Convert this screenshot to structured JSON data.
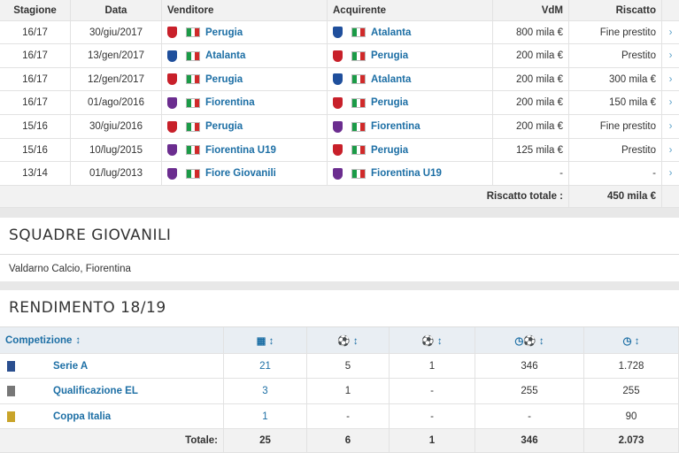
{
  "transfers": {
    "headers": [
      "Stagione",
      "Data",
      "Venditore",
      "Acquirente",
      "VdM",
      "Riscatto"
    ],
    "rows": [
      {
        "season": "16/17",
        "date": "30/giu/2017",
        "seller": "Perugia",
        "seller_crest": "#c8202a",
        "buyer": "Atalanta",
        "buyer_crest": "#1f4f9c",
        "value": "800 mila €",
        "buyout": "Fine prestito"
      },
      {
        "season": "16/17",
        "date": "13/gen/2017",
        "seller": "Atalanta",
        "seller_crest": "#1f4f9c",
        "buyer": "Perugia",
        "buyer_crest": "#c8202a",
        "value": "200 mila €",
        "buyout": "Prestito"
      },
      {
        "season": "16/17",
        "date": "12/gen/2017",
        "seller": "Perugia",
        "seller_crest": "#c8202a",
        "buyer": "Atalanta",
        "buyer_crest": "#1f4f9c",
        "value": "200 mila €",
        "buyout": "300 mila €"
      },
      {
        "season": "16/17",
        "date": "01/ago/2016",
        "seller": "Fiorentina",
        "seller_crest": "#6b2d8f",
        "buyer": "Perugia",
        "buyer_crest": "#c8202a",
        "value": "200 mila €",
        "buyout": "150 mila €"
      },
      {
        "season": "15/16",
        "date": "30/giu/2016",
        "seller": "Perugia",
        "seller_crest": "#c8202a",
        "buyer": "Fiorentina",
        "buyer_crest": "#6b2d8f",
        "value": "200 mila €",
        "buyout": "Fine prestito"
      },
      {
        "season": "15/16",
        "date": "10/lug/2015",
        "seller": "Fiorentina U19",
        "seller_crest": "#6b2d8f",
        "buyer": "Perugia",
        "buyer_crest": "#c8202a",
        "value": "125 mila €",
        "buyout": "Prestito"
      },
      {
        "season": "13/14",
        "date": "01/lug/2013",
        "seller": "Fiore Giovanili",
        "seller_crest": "#6b2d8f",
        "buyer": "Fiorentina U19",
        "buyer_crest": "#6b2d8f",
        "value": "-",
        "buyout": "-"
      }
    ],
    "total_label": "Riscatto totale :",
    "total": "450 mila €"
  },
  "youth": {
    "title": "SQUADRE GIOVANILI",
    "text": "Valdarno Calcio, Fiorentina"
  },
  "performance": {
    "title": "RENDIMENTO 18/19",
    "header": "Competizione",
    "rows": [
      {
        "competition": "Serie A",
        "cells": [
          "21",
          "5",
          "1",
          "346",
          "1.728"
        ]
      },
      {
        "competition": "Qualificazione EL",
        "cells": [
          "3",
          "1",
          "-",
          "255",
          "255"
        ]
      },
      {
        "competition": "Coppa Italia",
        "cells": [
          "1",
          "-",
          "-",
          "-",
          "90"
        ]
      }
    ],
    "total_label": "Totale:",
    "totals": [
      "25",
      "6",
      "1",
      "346",
      "2.073"
    ]
  }
}
